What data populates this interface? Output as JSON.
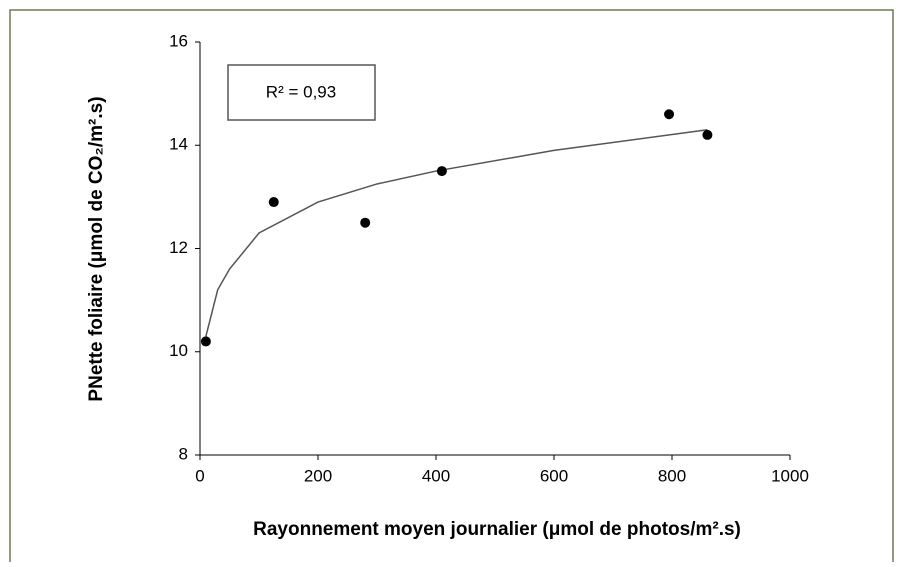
{
  "chart_data": {
    "type": "scatter",
    "xlabel": "Rayonnement moyen journalier (μmol de photos/m².s)",
    "ylabel": "PNette foliaire (μmol de CO₂/m².s)",
    "annotation": "R² = 0,93",
    "x": [
      10,
      125,
      280,
      410,
      795,
      860
    ],
    "values": [
      10.2,
      12.9,
      12.5,
      13.5,
      14.6,
      14.2
    ],
    "color": "#000000",
    "trendline": {
      "x": [
        10,
        30,
        50,
        100,
        200,
        300,
        400,
        600,
        860
      ],
      "y": [
        10.3,
        11.2,
        11.6,
        12.3,
        12.9,
        13.25,
        13.5,
        13.9,
        14.3
      ],
      "color": "#555555"
    },
    "xlim": [
      0,
      1000
    ],
    "xticks": [
      0,
      200,
      400,
      600,
      800,
      1000
    ],
    "ylim": [
      8,
      16
    ],
    "yticks": [
      8,
      10,
      12,
      14,
      16
    ]
  }
}
